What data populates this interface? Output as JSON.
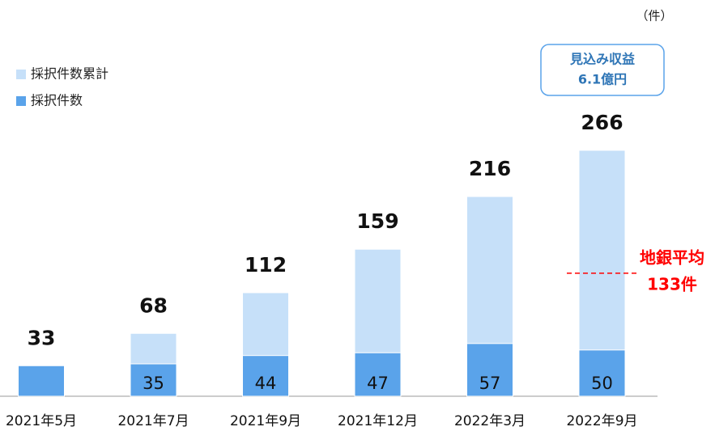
{
  "chart_data": {
    "type": "bar",
    "unit": "（件）",
    "categories": [
      "2021年5月",
      "2021年7月",
      "2021年9月",
      "2021年12月",
      "2022年3月",
      "2022年9月"
    ],
    "series": [
      {
        "name": "採択件数累計",
        "color": "#c6e0f9",
        "values": [
          33,
          68,
          112,
          159,
          216,
          266
        ]
      },
      {
        "name": "採択件数",
        "color": "#5aa3ea",
        "values": [
          33,
          35,
          44,
          47,
          57,
          50
        ],
        "value_labels": [
          null,
          "35",
          "44",
          "47",
          "57",
          "50"
        ]
      }
    ],
    "ylim": [
      0,
      300
    ],
    "callout": [
      "見込み収益",
      "6.1億円"
    ],
    "reference_line": {
      "value": 133,
      "label": [
        "地銀平均",
        "133件"
      ],
      "color": "#ff0000"
    }
  }
}
